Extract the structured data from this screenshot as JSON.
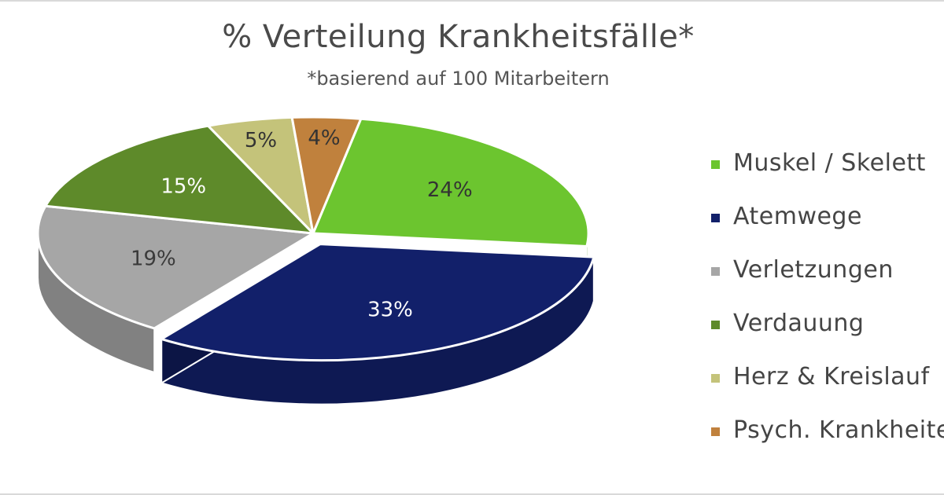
{
  "chart_data": {
    "type": "pie",
    "title": "% Verteilung Krankheitsfälle*",
    "subtitle": "*basierend auf 100 Mitarbeitern",
    "three_d": true,
    "legend_position": "right",
    "slices": [
      {
        "label": "Muskel / Skelett",
        "value": 24,
        "data_label": "24%",
        "color": "#6cc52f",
        "label_color": "#333333"
      },
      {
        "label": "Atemwege",
        "value": 33,
        "data_label": "33%",
        "color": "#12206a",
        "label_color": "#ffffff"
      },
      {
        "label": "Verletzungen",
        "value": 19,
        "data_label": "19%",
        "color": "#a6a6a6",
        "label_color": "#3a3a3a"
      },
      {
        "label": "Verdauung",
        "value": 15,
        "data_label": "15%",
        "color": "#5e8a2a",
        "label_color": "#ffffff"
      },
      {
        "label": "Herz & Kreislauf",
        "value": 5,
        "data_label": "5%",
        "color": "#c4c37a",
        "label_color": "#333333"
      },
      {
        "label": "Psych. Krankheiten",
        "value": 4,
        "data_label": "4%",
        "color": "#c0813d",
        "label_color": "#333333"
      }
    ]
  }
}
